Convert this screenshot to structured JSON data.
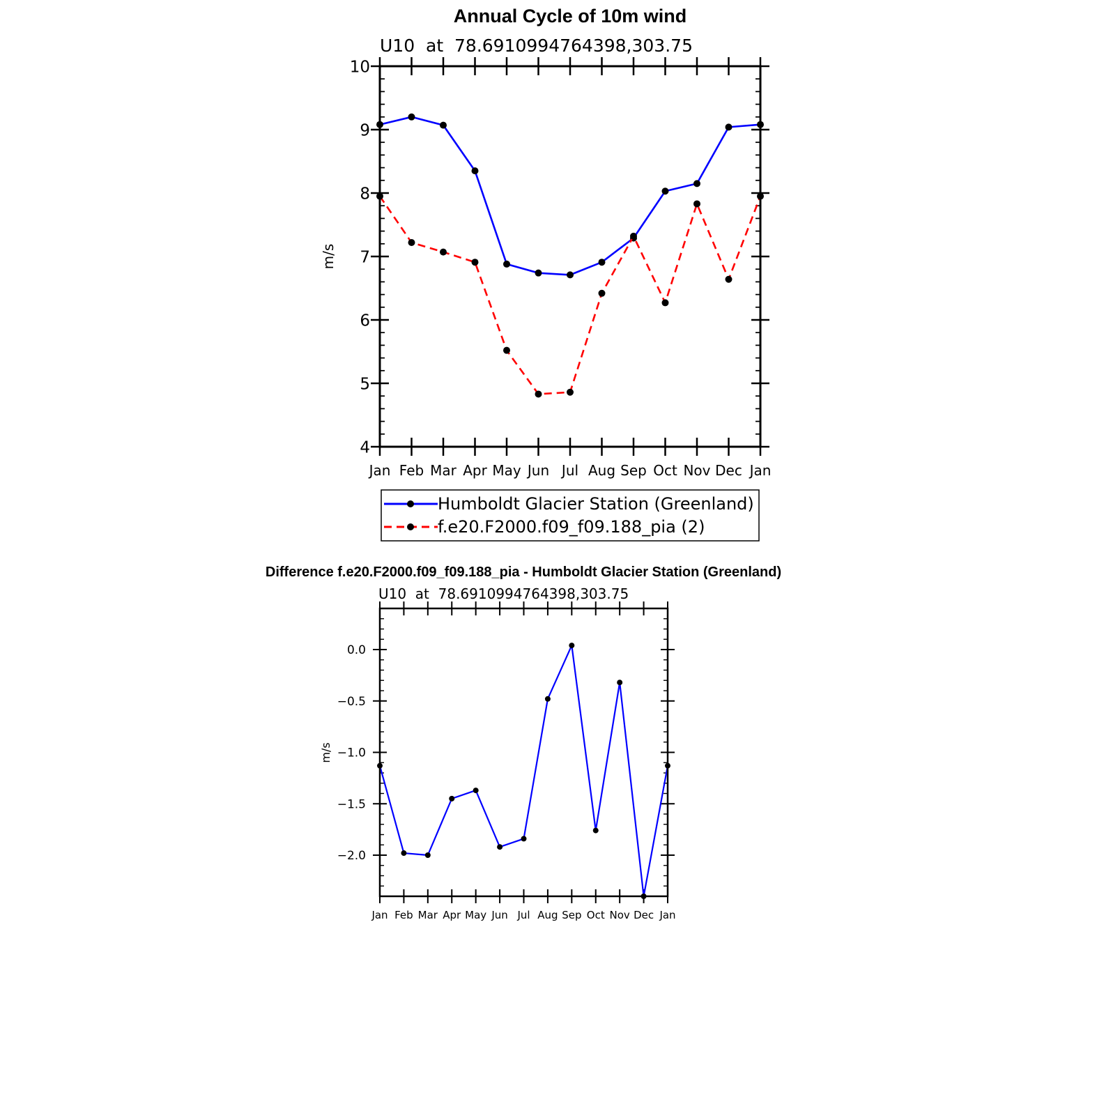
{
  "colors": {
    "observed": "#0000ff",
    "model": "#ff0000",
    "diff": "#0000ff",
    "marker": "#000000",
    "axis": "#000000"
  },
  "chart_data": [
    {
      "type": "line",
      "title": "Annual Cycle of 10m wind",
      "subtitle": "U10  at  78.6910994764398,303.75",
      "ylabel": "m/s",
      "xlabel": "",
      "categories": [
        "Jan",
        "Feb",
        "Mar",
        "Apr",
        "May",
        "Jun",
        "Jul",
        "Aug",
        "Sep",
        "Oct",
        "Nov",
        "Dec",
        "Jan"
      ],
      "ylim": [
        4,
        10
      ],
      "yticks": [
        "4",
        "5",
        "6",
        "7",
        "8",
        "9",
        "10"
      ],
      "grid": false,
      "legend_position": "below",
      "series": [
        {
          "name": "Humboldt Glacier Station (Greenland)",
          "style": "solid",
          "color": "#0000ff",
          "values": [
            9.08,
            9.2,
            9.07,
            8.35,
            6.88,
            6.74,
            6.71,
            6.91,
            7.29,
            8.03,
            8.15,
            9.04,
            9.08
          ]
        },
        {
          "name": "f.e20.F2000.f09_f09.188_pia (2)",
          "style": "dashed",
          "color": "#ff0000",
          "values": [
            7.95,
            7.22,
            7.07,
            6.91,
            5.52,
            4.83,
            4.86,
            6.42,
            7.32,
            6.27,
            7.83,
            6.64,
            7.95
          ]
        }
      ]
    },
    {
      "type": "line",
      "title": "Difference f.e20.F2000.f09_f09.188_pia - Humboldt Glacier Station (Greenland)",
      "subtitle": "U10  at  78.6910994764398,303.75",
      "ylabel": "m/s",
      "xlabel": "",
      "categories": [
        "Jan",
        "Feb",
        "Mar",
        "Apr",
        "May",
        "Jun",
        "Jul",
        "Aug",
        "Sep",
        "Oct",
        "Nov",
        "Dec",
        "Jan"
      ],
      "ylim": [
        -2.4,
        0.4
      ],
      "yticks": [
        "0.0",
        "−0.5",
        "−1.0",
        "−1.5",
        "−2.0"
      ],
      "ytick_values": [
        0.0,
        -0.5,
        -1.0,
        -1.5,
        -2.0
      ],
      "grid": false,
      "series": [
        {
          "color": "#0000ff",
          "style": "solid",
          "values": [
            -1.13,
            -1.98,
            -2.0,
            -1.45,
            -1.37,
            -1.92,
            -1.84,
            -0.48,
            0.04,
            -1.76,
            -0.32,
            -2.4,
            -1.13
          ]
        }
      ]
    }
  ]
}
